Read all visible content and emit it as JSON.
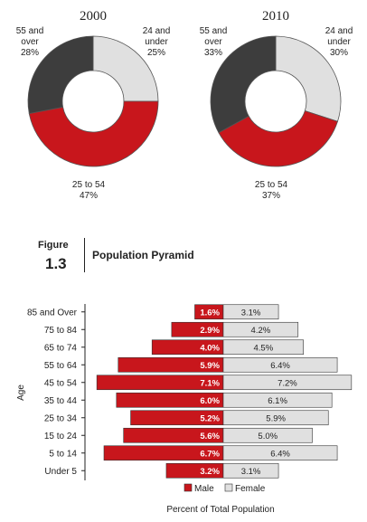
{
  "chart_data": [
    {
      "type": "pie",
      "title": "2000",
      "colors": [
        "#e0e0e0",
        "#c8161c",
        "#3d3d3d"
      ],
      "slices": [
        {
          "label_lines": [
            "24 and",
            "under"
          ],
          "pct": "25%",
          "value": 25
        },
        {
          "label_lines": [
            "25 to 54"
          ],
          "pct": "47%",
          "value": 47
        },
        {
          "label_lines": [
            "55 and",
            "over"
          ],
          "pct": "28%",
          "value": 28
        }
      ]
    },
    {
      "type": "pie",
      "title": "2010",
      "colors": [
        "#e0e0e0",
        "#c8161c",
        "#3d3d3d"
      ],
      "slices": [
        {
          "label_lines": [
            "24 and",
            "under"
          ],
          "pct": "30%",
          "value": 30
        },
        {
          "label_lines": [
            "25 to 54"
          ],
          "pct": "37%",
          "value": 37
        },
        {
          "label_lines": [
            "55 and",
            "over"
          ],
          "pct": "33%",
          "value": 33
        }
      ]
    },
    {
      "type": "bar",
      "orientation": "horizontal",
      "categories": [
        "85 and Over",
        "75 to 84",
        "65 to 74",
        "55 to 64",
        "45 to 54",
        "35 to 44",
        "25 to 34",
        "15 to 24",
        "5 to 14",
        "Under 5"
      ],
      "series": [
        {
          "name": "Male",
          "color": "#c8161c",
          "values": [
            1.6,
            2.9,
            4.0,
            5.9,
            7.1,
            6.0,
            5.2,
            5.6,
            6.7,
            3.2
          ],
          "labels": [
            "1.6%",
            "2.9%",
            "4.0%",
            "5.9%",
            "7.1%",
            "6.0%",
            "5.2%",
            "5.6%",
            "6.7%",
            "3.2%"
          ]
        },
        {
          "name": "Female",
          "color": "#e0e0e0",
          "values": [
            3.1,
            4.2,
            4.5,
            6.4,
            7.2,
            6.1,
            5.9,
            5.0,
            6.4,
            3.1
          ],
          "labels": [
            "3.1%",
            "4.2%",
            "4.5%",
            "6.4%",
            "7.2%",
            "6.1%",
            "5.9%",
            "5.0%",
            "6.4%",
            "3.1%"
          ]
        }
      ],
      "ylabel": "Age",
      "xlabel": "Percent of Total Population"
    }
  ],
  "figure": {
    "label": "Figure",
    "number": "1.3",
    "title": "Population Pyramid"
  }
}
